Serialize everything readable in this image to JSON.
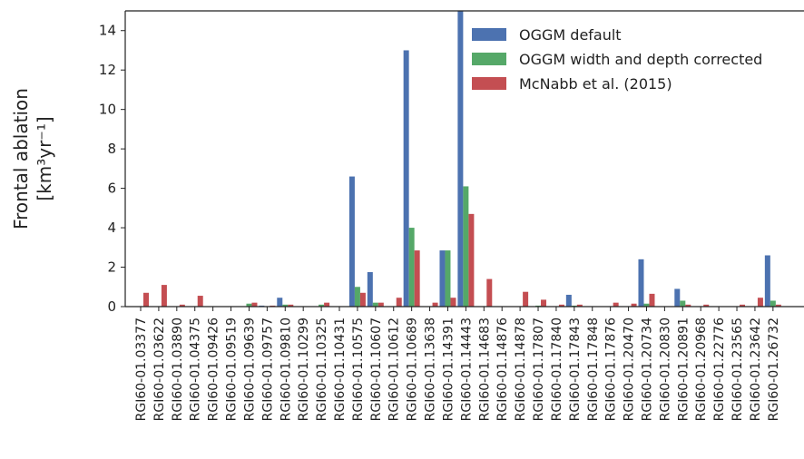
{
  "chart_data": {
    "type": "bar",
    "y_label": [
      "Frontal ablation",
      "[km³yr⁻¹]"
    ],
    "categories": [
      "RGI60-01.03377",
      "RGI60-01.03622",
      "RGI60-01.03890",
      "RGI60-01.04375",
      "RGI60-01.09426",
      "RGI60-01.09519",
      "RGI60-01.09639",
      "RGI60-01.09757",
      "RGI60-01.09810",
      "RGI60-01.10299",
      "RGI60-01.10325",
      "RGI60-01.10431",
      "RGI60-01.10575",
      "RGI60-01.10607",
      "RGI60-01.10612",
      "RGI60-01.10689",
      "RGI60-01.13638",
      "RGI60-01.14391",
      "RGI60-01.14443",
      "RGI60-01.14683",
      "RGI60-01.14876",
      "RGI60-01.14878",
      "RGI60-01.17807",
      "RGI60-01.17840",
      "RGI60-01.17843",
      "RGI60-01.17848",
      "RGI60-01.17876",
      "RGI60-01.20470",
      "RGI60-01.20734",
      "RGI60-01.20830",
      "RGI60-01.20891",
      "RGI60-01.20968",
      "RGI60-01.22776",
      "RGI60-01.23565",
      "RGI60-01.23642",
      "RGI60-01.26732"
    ],
    "series": [
      {
        "name": "OGGM default",
        "color": "#4c72b0",
        "values": [
          0,
          0,
          0,
          0,
          0,
          0,
          0,
          0.05,
          0.45,
          0,
          0,
          0,
          6.6,
          1.75,
          0,
          13.0,
          0,
          2.85,
          15.5,
          0,
          0,
          0,
          0,
          0,
          0.6,
          0,
          0,
          0,
          2.4,
          0,
          0.9,
          0,
          0,
          0,
          0,
          2.6
        ]
      },
      {
        "name": "OGGM width and depth corrected",
        "color": "#55a868",
        "values": [
          0,
          0,
          0,
          0,
          0,
          0,
          0.15,
          0,
          0.1,
          0,
          0.1,
          0,
          1.0,
          0.2,
          0,
          4.0,
          0,
          2.85,
          6.1,
          0,
          0,
          0,
          0.05,
          0,
          0.05,
          0,
          0,
          0,
          0.15,
          0,
          0.3,
          0,
          0,
          0,
          0,
          0.3
        ]
      },
      {
        "name": "McNabb et al. (2015)",
        "color": "#c44e52",
        "values": [
          0.7,
          1.1,
          0.1,
          0.55,
          0,
          0,
          0.2,
          0.05,
          0.1,
          0,
          0.2,
          0,
          0.7,
          0.2,
          0.45,
          2.85,
          0.2,
          0.45,
          4.7,
          1.4,
          0,
          0.75,
          0.35,
          0.1,
          0.1,
          0,
          0.2,
          0.15,
          0.65,
          0,
          0.1,
          0.1,
          0,
          0.1,
          0.45,
          0.1
        ]
      }
    ],
    "ylim": [
      0,
      15
    ],
    "yticks": [
      0,
      2,
      4,
      6,
      8,
      10,
      12,
      14
    ],
    "legend": "upper right"
  }
}
